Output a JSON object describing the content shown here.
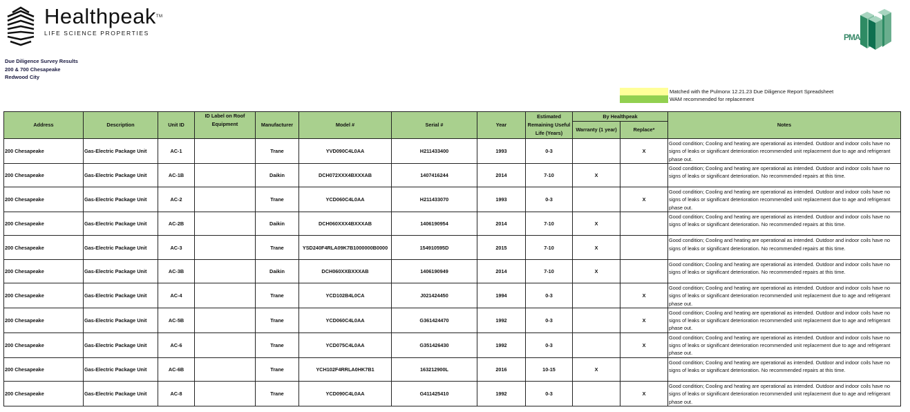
{
  "brand": {
    "name": "Healthpeak",
    "tm": "TM",
    "tagline": "LIFE SCIENCE PROPERTIES",
    "partner_logo": "PMA"
  },
  "report": {
    "title": "Due Diligence Survey Results",
    "property": "200 & 700 Chesapeake",
    "city": "Redwood City"
  },
  "legend": [
    {
      "color": "#ffff99",
      "label": "Matched with the Pulmonx 12.21.23 Due Diligence Report Spreadsheet"
    },
    {
      "color": "#92d050",
      "label": "WAM recommended for replacement"
    }
  ],
  "colors": {
    "header_bg": "#a9d08e"
  },
  "table": {
    "headers": {
      "address": "Address",
      "description": "Description",
      "unit_id": "Unit ID",
      "id_label": "ID Label on Roof Equipment",
      "manufacturer": "Manufacturer",
      "model": "Model #",
      "serial": "Serial #",
      "year": "Year",
      "rul": "Estimated Remaining Useful Life (Years)",
      "by": "By Healthpeak",
      "warranty": "Warranty (1 year)",
      "replace": "Replace*",
      "notes": "Notes"
    },
    "rows": [
      {
        "address": "200 Chesapeake",
        "description": "Gas-Electric Package Unit",
        "unit_id": "AC-1",
        "id_label": "",
        "manufacturer": "Trane",
        "model": "YVD090C4L0AA",
        "serial": "H211433400",
        "year": "1993",
        "rul": "0-3",
        "warranty": "",
        "replace": "X",
        "notes": "Good condition; Cooling and heating are operational as intended. Outdoor and indoor coils have no signs of leaks or significant deterioration recommended unit replacement due to age and refrigerant phase out."
      },
      {
        "address": "200 Chesapeake",
        "description": "Gas-Electric Package Unit",
        "unit_id": "AC-1B",
        "id_label": "",
        "manufacturer": "Daikin",
        "model": "DCH072XXX4BXXXAB",
        "serial": "1407416244",
        "year": "2014",
        "rul": "7-10",
        "warranty": "X",
        "replace": "",
        "notes": "Good condition; Cooling and heating are operational as intended. Outdoor and indoor coils have no signs of leaks or significant deterioration. No recommended repairs at this time."
      },
      {
        "address": "200 Chesapeake",
        "description": "Gas-Electric Package Unit",
        "unit_id": "AC-2",
        "id_label": "",
        "manufacturer": "Trane",
        "model": "YCD060C4L0AA",
        "serial": "H211433070",
        "year": "1993",
        "rul": "0-3",
        "warranty": "",
        "replace": "X",
        "notes": "Good condition; Cooling and heating are operational as intended. Outdoor and indoor coils have no signs of leaks or significant deterioration recommended unit replacement due to age and refrigerant phase out."
      },
      {
        "address": "200 Chesapeake",
        "description": "Gas-Electric Package Unit",
        "unit_id": "AC-2B",
        "id_label": "",
        "manufacturer": "Daikin",
        "model": "DCH060XXX4BXXXAB",
        "serial": "1406190954",
        "year": "2014",
        "rul": "7-10",
        "warranty": "X",
        "replace": "",
        "notes": "Good condition; Cooling and heating are operational as intended. Outdoor and indoor coils have no signs of leaks or significant deterioration. No recommended repairs at this time."
      },
      {
        "address": "200 Chesapeake",
        "description": "Gas-Electric Package Unit",
        "unit_id": "AC-3",
        "id_label": "",
        "manufacturer": "Trane",
        "model": "YSD240F4RLA09K7B1000000B0000",
        "serial": "154910595D",
        "year": "2015",
        "rul": "7-10",
        "warranty": "X",
        "replace": "",
        "notes": "Good condition; Cooling and heating are operational as intended. Outdoor and indoor coils have no signs of leaks or significant deterioration. No recommended repairs at this time."
      },
      {
        "address": "200 Chesapeake",
        "description": "Gas-Electric Package Unit",
        "unit_id": "AC-3B",
        "id_label": "",
        "manufacturer": "Daikin",
        "model": "DCH060XXBXXXAB",
        "serial": "1406190949",
        "year": "2014",
        "rul": "7-10",
        "warranty": "X",
        "replace": "",
        "notes": "Good condition; Cooling and heating are operational as intended. Outdoor and indoor coils have no signs of leaks or significant deterioration. No recommended repairs at this time."
      },
      {
        "address": "200 Chesapeake",
        "description": "Gas-Electric Package Unit",
        "unit_id": "AC-4",
        "id_label": "",
        "manufacturer": "Trane",
        "model": "YCD102B4L0CA",
        "serial": "J021424450",
        "year": "1994",
        "rul": "0-3",
        "warranty": "",
        "replace": "X",
        "notes": "Good condition; Cooling and heating are operational as intended. Outdoor and indoor coils have no signs of leaks or significant deterioration recommended unit replacement due to age and refrigerant phase out."
      },
      {
        "address": "200 Chesapeake",
        "description": "Gas-Electric Package Unit",
        "unit_id": "AC-5B",
        "id_label": "",
        "manufacturer": "Trane",
        "model": "YCD060C4L0AA",
        "serial": "G361424470",
        "year": "1992",
        "rul": "0-3",
        "warranty": "",
        "replace": "X",
        "notes": "Good condition; Cooling and heating are operational as intended. Outdoor and indoor coils have no signs of leaks or significant deterioration recommended unit replacement due to age and refrigerant phase out."
      },
      {
        "address": "200 Chesapeake",
        "description": "Gas-Electric Package Unit",
        "unit_id": "AC-6",
        "id_label": "",
        "manufacturer": "Trane",
        "model": "YCD075C4L0AA",
        "serial": "G351426430",
        "year": "1992",
        "rul": "0-3",
        "warranty": "",
        "replace": "X",
        "notes": "Good condition; Cooling and heating are operational as intended. Outdoor and indoor coils have no signs of leaks or significant deterioration recommended unit replacement due to age and refrigerant phase out."
      },
      {
        "address": "200 Chesapeake",
        "description": "Gas-Electric Package Unit",
        "unit_id": "AC-6B",
        "id_label": "",
        "manufacturer": "Trane",
        "model": "YCH102F4RRLA0HK7B1",
        "serial": "163212900L",
        "year": "2016",
        "rul": "10-15",
        "warranty": "X",
        "replace": "",
        "notes": "Good condition; Cooling and heating are operational as intended. Outdoor and indoor coils have no signs of leaks or significant deterioration. No recommended repairs at this time."
      },
      {
        "address": "200 Chesapeake",
        "description": "Gas-Electric Package Unit",
        "unit_id": "AC-8",
        "id_label": "",
        "manufacturer": "Trane",
        "model": "YCD090C4L0AA",
        "serial": "G411425410",
        "year": "1992",
        "rul": "0-3",
        "warranty": "",
        "replace": "X",
        "notes": "Good condition; Cooling and heating are operational as intended. Outdoor and indoor coils have no signs of leaks or significant deterioration recommended unit replacement due to age and refrigerant phase out."
      }
    ]
  }
}
